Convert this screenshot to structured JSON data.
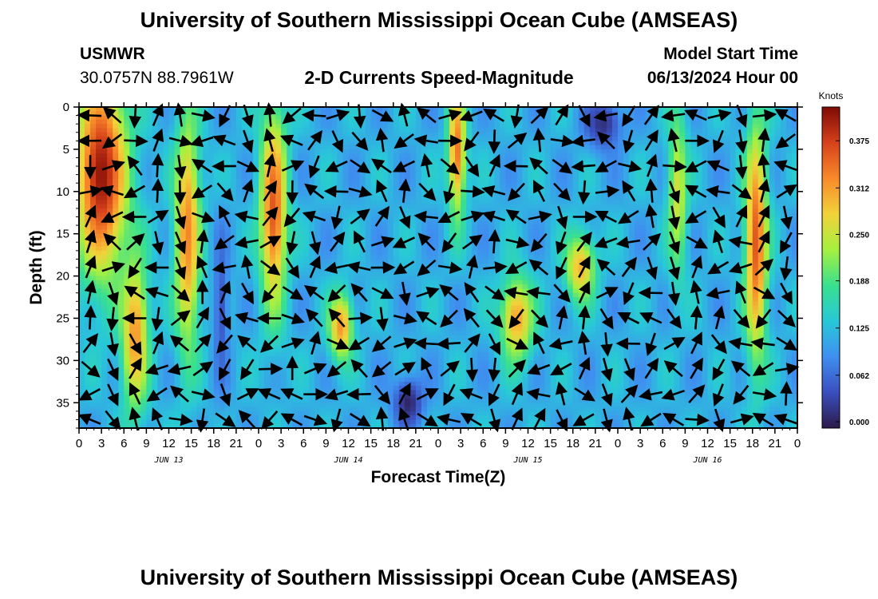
{
  "header": {
    "title": "University of Southern Mississippi Ocean Cube (AMSEAS)",
    "station": "USMWR",
    "coordinates": "30.0757N  88.7961W",
    "subtitle": "2-D Currents Speed-Magnitude",
    "model_start_label": "Model Start Time",
    "model_start_value": "06/13/2024 Hour 00"
  },
  "footer": {
    "title": "University of Southern Mississippi Ocean Cube (AMSEAS)"
  },
  "colors": {
    "scale": [
      "#2c1a4a",
      "#3a4fbf",
      "#3f8ff0",
      "#28c8d8",
      "#39e08f",
      "#a6f040",
      "#f2d23a",
      "#f88a2a",
      "#d6411b",
      "#7e0a05"
    ]
  },
  "chart_data": {
    "type": "heatmap",
    "title": "2-D Currents Speed-Magnitude",
    "xlabel": "Forecast Time(Z)",
    "ylabel": "Depth (ft)",
    "x_ticks": [
      "0",
      "3",
      "6",
      "9",
      "12",
      "15",
      "18",
      "21",
      "0",
      "3",
      "6",
      "9",
      "12",
      "15",
      "18",
      "21",
      "0",
      "3",
      "6",
      "9",
      "12",
      "15",
      "18",
      "21",
      "0",
      "3",
      "6",
      "9",
      "12",
      "15",
      "18",
      "21",
      "0"
    ],
    "x_range_hours": [
      0,
      96
    ],
    "date_labels": [
      {
        "text": "JUN 13",
        "hour": 12
      },
      {
        "text": "JUN 14",
        "hour": 36
      },
      {
        "text": "JUN 15",
        "hour": 60
      },
      {
        "text": "JUN 16",
        "hour": 84
      }
    ],
    "y_ticks": [
      0,
      5,
      10,
      15,
      20,
      25,
      30,
      35
    ],
    "y_range_ft": [
      0,
      38
    ],
    "y_inverted": true,
    "colorbar": {
      "unit": "Knots",
      "ticks": [
        "0.000",
        "0.062",
        "0.125",
        "0.188",
        "0.250",
        "0.312",
        "0.375"
      ],
      "range": [
        0,
        0.42
      ]
    },
    "speed_features": [
      {
        "hour": 3,
        "depth": 8,
        "speed": 0.41,
        "hour_spread": 3.5,
        "depth_spread": 12
      },
      {
        "hour": 7.5,
        "depth": 27,
        "speed": 0.32,
        "hour_spread": 1.8,
        "depth_spread": 9
      },
      {
        "hour": 14.5,
        "depth": 15,
        "speed": 0.33,
        "hour_spread": 1.7,
        "depth_spread": 14
      },
      {
        "hour": 26,
        "depth": 12,
        "speed": 0.36,
        "hour_spread": 1.8,
        "depth_spread": 12
      },
      {
        "hour": 35,
        "depth": 26,
        "speed": 0.32,
        "hour_spread": 1.6,
        "depth_spread": 4
      },
      {
        "hour": 50.5,
        "depth": 5,
        "speed": 0.34,
        "hour_spread": 1.2,
        "depth_spread": 8
      },
      {
        "hour": 58.5,
        "depth": 25,
        "speed": 0.31,
        "hour_spread": 2.2,
        "depth_spread": 5
      },
      {
        "hour": 67,
        "depth": 19,
        "speed": 0.3,
        "hour_spread": 2.0,
        "depth_spread": 4
      },
      {
        "hour": 80,
        "depth": 10,
        "speed": 0.26,
        "hour_spread": 1.3,
        "depth_spread": 10
      },
      {
        "hour": 90.5,
        "depth": 16,
        "speed": 0.36,
        "hour_spread": 1.5,
        "depth_spread": 14
      },
      {
        "hour": 19,
        "depth": 24,
        "speed": 0.05,
        "hour_spread": 1.0,
        "depth_spread": 9
      },
      {
        "hour": 44,
        "depth": 35,
        "speed": 0.01,
        "hour_spread": 2.0,
        "depth_spread": 3
      },
      {
        "hour": 70,
        "depth": 2,
        "speed": 0.02,
        "hour_spread": 2.5,
        "depth_spread": 3
      }
    ],
    "vectors": {
      "hour_step": 3,
      "depth_step": 3,
      "note": "direction field of current vectors drawn as black arrows"
    }
  }
}
